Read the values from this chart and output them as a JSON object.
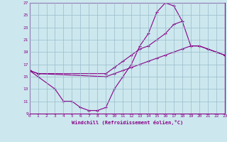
{
  "xlabel": "Windchill (Refroidissement éolien,°C)",
  "bg_color": "#cce8ee",
  "line_color": "#880088",
  "grid_color": "#99bbcc",
  "xmin": 0,
  "xmax": 23,
  "ymin": 9,
  "ymax": 27,
  "yticks": [
    9,
    11,
    13,
    15,
    17,
    19,
    21,
    23,
    25,
    27
  ],
  "xticks": [
    0,
    1,
    2,
    3,
    4,
    5,
    6,
    7,
    8,
    9,
    10,
    11,
    12,
    13,
    14,
    15,
    16,
    17,
    18,
    19,
    20,
    21,
    22,
    23
  ],
  "curve1_x": [
    0,
    1,
    3,
    4,
    5,
    6,
    7,
    8,
    9,
    10,
    11,
    12,
    13,
    14,
    15,
    16,
    17,
    18
  ],
  "curve1_y": [
    16,
    15,
    13,
    11,
    11,
    10,
    9.5,
    9.5,
    10,
    13,
    15,
    17,
    20,
    22,
    25.5,
    27,
    26.5,
    24
  ],
  "curve2_x": [
    0,
    1,
    9,
    10,
    11,
    12,
    13,
    14,
    15,
    16,
    17,
    18,
    19,
    20,
    21,
    22,
    23
  ],
  "curve2_y": [
    16,
    15.5,
    15.5,
    16.5,
    17.5,
    18.5,
    19.5,
    20,
    21,
    22,
    23.5,
    24,
    20,
    20,
    19.5,
    19,
    18.5
  ],
  "curve3_x": [
    0,
    1,
    9,
    10,
    11,
    12,
    13,
    14,
    15,
    16,
    17,
    18,
    19,
    20,
    21,
    22,
    23
  ],
  "curve3_y": [
    16,
    15.5,
    15,
    15.5,
    16,
    16.5,
    17,
    17.5,
    18,
    18.5,
    19,
    19.5,
    20,
    20,
    19.5,
    19,
    18.5
  ]
}
